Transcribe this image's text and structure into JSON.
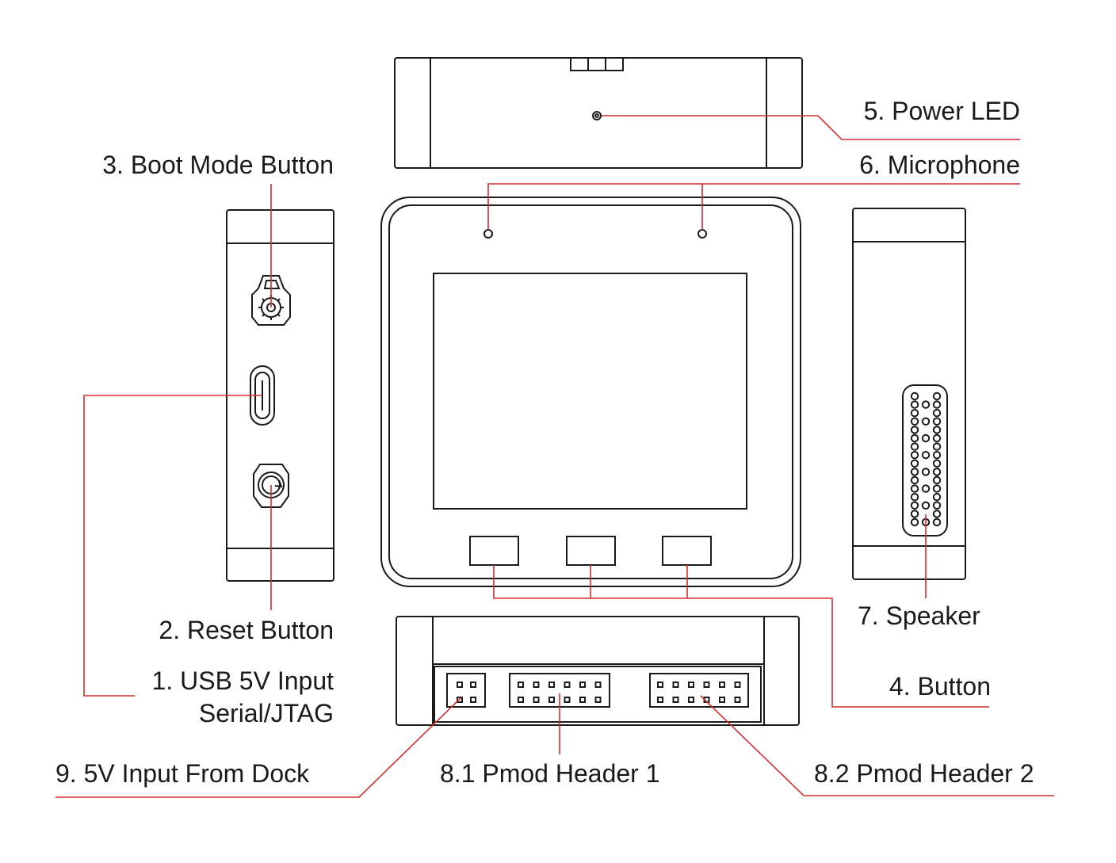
{
  "labels": {
    "power_led": "5. Power LED",
    "microphone": "6. Microphone",
    "boot_mode_button": "3. Boot Mode Button",
    "reset_button": "2. Reset Button",
    "usb_input_line1": "1. USB 5V Input",
    "usb_input_line2": "Serial/JTAG",
    "speaker": "7. Speaker",
    "button": "4. Button",
    "dock_input": "9. 5V Input From Dock",
    "pmod_header_1": "8.1 Pmod Header 1",
    "pmod_header_2": "8.2 Pmod Header 2"
  },
  "colors": {
    "outline": "#1a1a1a",
    "leader_line": "#d32f2f",
    "background": "#ffffff"
  }
}
